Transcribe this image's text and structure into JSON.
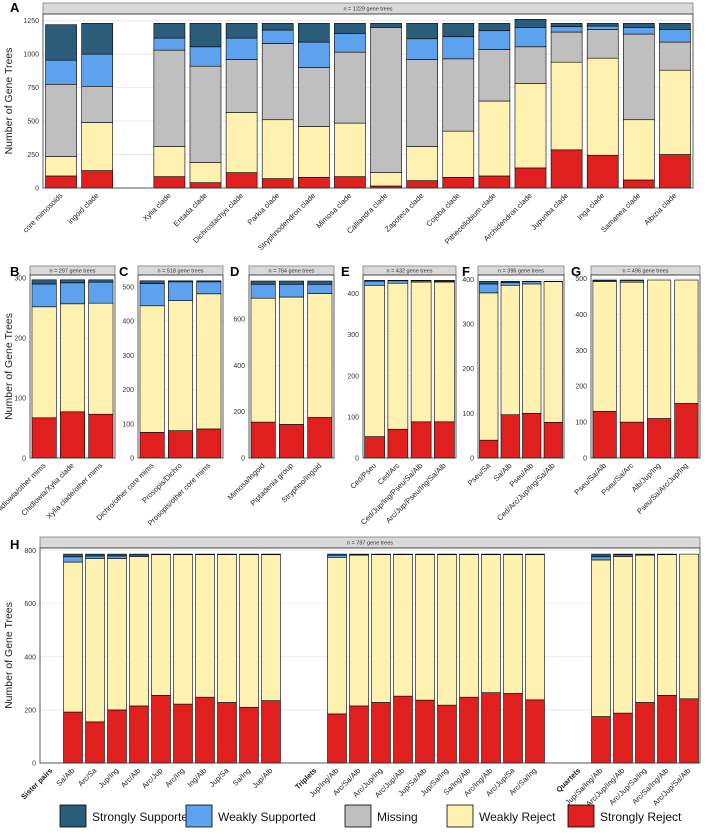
{
  "legend": {
    "categories": [
      "Strongly Supported",
      "Weakly Supported",
      "Missing",
      "Weakly Reject",
      "Strongly Reject"
    ],
    "colors": [
      "#2b5d7a",
      "#5da2ee",
      "#bfbfbf",
      "#fff1b0",
      "#e0201e"
    ]
  },
  "chart_data": [
    {
      "panel": "A",
      "type": "stacked-bar",
      "strip": "n = 1229 gene trees",
      "ylabel": "Number of Gene Trees",
      "ylim": [
        0,
        1300
      ],
      "yticks": [
        0,
        250,
        500,
        750,
        1000,
        1250
      ],
      "categories": [
        "core mimosoids",
        "ingoid clade",
        "",
        "Xylia clade",
        "Entada clade",
        "Dichrostachys clade",
        "Parkia clade",
        "Stryphnodendron clade",
        "Mimosa clade",
        "Calliandra clade",
        "Zapoteca clade",
        "Cojoba clade",
        "Pithecellobium clade",
        "Archidendron clade",
        "Jupunba clade",
        "Inga clade",
        "Samanea clade",
        "Albizia clade"
      ],
      "series": [
        {
          "name": "Strongly Reject",
          "values": [
            90,
            130,
            null,
            85,
            40,
            115,
            70,
            80,
            85,
            15,
            55,
            80,
            90,
            150,
            285,
            245,
            60,
            250
          ]
        },
        {
          "name": "Weakly Reject",
          "values": [
            145,
            360,
            null,
            225,
            150,
            450,
            440,
            380,
            400,
            100,
            255,
            345,
            560,
            630,
            655,
            725,
            450,
            630
          ]
        },
        {
          "name": "Missing",
          "values": [
            540,
            270,
            null,
            720,
            720,
            395,
            570,
            440,
            530,
            1085,
            650,
            540,
            385,
            275,
            225,
            215,
            640,
            210
          ]
        },
        {
          "name": "Weakly Supported",
          "values": [
            180,
            240,
            null,
            90,
            145,
            160,
            100,
            190,
            140,
            0,
            155,
            165,
            140,
            145,
            40,
            25,
            50,
            95
          ]
        },
        {
          "name": "Strongly Supported",
          "values": [
            265,
            230,
            null,
            110,
            175,
            110,
            50,
            140,
            75,
            30,
            115,
            100,
            55,
            60,
            25,
            20,
            30,
            45
          ]
        }
      ]
    },
    {
      "panel": "B",
      "type": "stacked-bar",
      "strip": "n = 297 gene trees",
      "ylabel": "Number of Gene Trees",
      "ylim": [
        0,
        305
      ],
      "yticks": [
        0,
        100,
        200,
        300
      ],
      "categories": [
        "Chidlowia/other mims",
        "Chidlowia/Xylia clade",
        "Xylia clade/other mims"
      ],
      "series": [
        {
          "name": "Strongly Reject",
          "values": [
            67,
            77,
            73
          ]
        },
        {
          "name": "Weakly Reject",
          "values": [
            185,
            180,
            185
          ]
        },
        {
          "name": "Missing",
          "values": [
            0,
            0,
            0
          ]
        },
        {
          "name": "Weakly Supported",
          "values": [
            38,
            35,
            35
          ]
        },
        {
          "name": "Strongly Supported",
          "values": [
            7,
            5,
            4
          ]
        }
      ]
    },
    {
      "panel": "C",
      "type": "stacked-bar",
      "strip": "n = 518 gene trees",
      "ylabel": "",
      "ylim": [
        0,
        535
      ],
      "yticks": [
        0,
        100,
        200,
        300,
        400,
        500
      ],
      "categories": [
        "Dichro/other core mims",
        "Prosopis/Dichro",
        "Prosopis/other core mims"
      ],
      "series": [
        {
          "name": "Strongly Reject",
          "values": [
            75,
            80,
            85
          ]
        },
        {
          "name": "Weakly Reject",
          "values": [
            370,
            380,
            395
          ]
        },
        {
          "name": "Missing",
          "values": [
            0,
            0,
            0
          ]
        },
        {
          "name": "Weakly Supported",
          "values": [
            65,
            55,
            35
          ]
        },
        {
          "name": "Strongly Supported",
          "values": [
            8,
            3,
            3
          ]
        }
      ]
    },
    {
      "panel": "D",
      "type": "stacked-bar",
      "strip": "n = 764 gene trees",
      "ylabel": "",
      "ylim": [
        0,
        790
      ],
      "yticks": [
        0,
        200,
        400,
        600
      ],
      "categories": [
        "Mimosa/Ingoid",
        "Piptadenia group",
        "Stryphno/Ingoid"
      ],
      "series": [
        {
          "name": "Strongly Reject",
          "values": [
            155,
            145,
            175
          ]
        },
        {
          "name": "Weakly Reject",
          "values": [
            535,
            550,
            535
          ]
        },
        {
          "name": "Missing",
          "values": [
            0,
            0,
            0
          ]
        },
        {
          "name": "Weakly Supported",
          "values": [
            60,
            55,
            40
          ]
        },
        {
          "name": "Strongly Supported",
          "values": [
            14,
            14,
            14
          ]
        }
      ]
    },
    {
      "panel": "E",
      "type": "stacked-bar",
      "strip": "n = 432 gene trees",
      "ylabel": "",
      "ylim": [
        0,
        445
      ],
      "yticks": [
        0,
        100,
        200,
        300,
        400
      ],
      "categories": [
        "Ced/Pseu",
        "Ced/Arc",
        "Ced/Jup/Ing/Pseu/Sa/Alb",
        "Arc/Jup/Pseu/Ing/Sa/Alb"
      ],
      "series": [
        {
          "name": "Strongly Reject",
          "values": [
            52,
            70,
            88,
            88
          ]
        },
        {
          "name": "Weakly Reject",
          "values": [
            368,
            355,
            340,
            340
          ]
        },
        {
          "name": "Missing",
          "values": [
            0,
            0,
            0,
            0
          ]
        },
        {
          "name": "Weakly Supported",
          "values": [
            10,
            6,
            3,
            2
          ]
        },
        {
          "name": "Strongly Supported",
          "values": [
            2,
            1,
            1,
            2
          ]
        }
      ]
    },
    {
      "panel": "F",
      "type": "stacked-bar",
      "strip": "n = 396 gene trees",
      "ylabel": "",
      "ylim": [
        0,
        410
      ],
      "yticks": [
        0,
        100,
        200,
        300,
        400
      ],
      "categories": [
        "Pseu/Sa",
        "Sa/Alb",
        "Pseu/Alb",
        "Ced/Arc/Jup/Ing/Sa/Alb"
      ],
      "series": [
        {
          "name": "Strongly Reject",
          "values": [
            40,
            97,
            100,
            80
          ]
        },
        {
          "name": "Weakly Reject",
          "values": [
            330,
            290,
            290,
            315
          ]
        },
        {
          "name": "Missing",
          "values": [
            0,
            0,
            0,
            0
          ]
        },
        {
          "name": "Weakly Supported",
          "values": [
            20,
            6,
            5,
            1
          ]
        },
        {
          "name": "Strongly Supported",
          "values": [
            6,
            3,
            1,
            0
          ]
        }
      ]
    },
    {
      "panel": "G",
      "type": "stacked-bar",
      "strip": "n = 496 gene trees",
      "ylabel": "",
      "ylim": [
        0,
        510
      ],
      "yticks": [
        0,
        100,
        200,
        300,
        400,
        500
      ],
      "categories": [
        "Pseu/Sa/Alb",
        "Pseu/Sa/Arc",
        "Alb/Jup/Ing",
        "Pseu/Sa/Arc/Jup/Ing"
      ],
      "series": [
        {
          "name": "Strongly Reject",
          "values": [
            130,
            100,
            110,
            152
          ]
        },
        {
          "name": "Weakly Reject",
          "values": [
            362,
            390,
            386,
            344
          ]
        },
        {
          "name": "Missing",
          "values": [
            0,
            0,
            0,
            0
          ]
        },
        {
          "name": "Weakly Supported",
          "values": [
            3,
            5,
            0,
            0
          ]
        },
        {
          "name": "Strongly Supported",
          "values": [
            1,
            1,
            0,
            0
          ]
        }
      ]
    },
    {
      "panel": "H",
      "type": "stacked-bar",
      "strip": "n = 787 gene trees",
      "ylabel": "Number of Gene Trees",
      "ylim": [
        0,
        810
      ],
      "yticks": [
        0,
        200,
        400,
        600,
        800
      ],
      "group_headers": [
        "Sister pairs",
        "Triplets",
        "Quartets"
      ],
      "categories": [
        "Sister pairs",
        "Sa/Alb",
        "Arc/Sa",
        "Jup/Ing",
        "Arc/Alb",
        "Arc/Jup",
        "Arc/Ing",
        "Ing/Alb",
        "Jup/Sa",
        "Sa/Ing",
        "Jup/Alb",
        "",
        "Triplets",
        "Jup/Ing/Alb",
        "Arc/Sa/Alb",
        "Arc/Jup/Ing",
        "Arc/Jup/Alb",
        "Jup/Sa/Alb",
        "Jup/Sa/Ing",
        "Sa/Ing/Alb",
        "Arc/Ing/Alb",
        "Arc/Jup/Sa",
        "Arc/Sa/Ing",
        "",
        "Quartets",
        "Jup/Sa/Ing/Alb",
        "Arc/Jup/Ing/Alb",
        "Arc/Jup/Sa/Ing",
        "Arc/Sa/Ing/Alb",
        "Arc/Jup/Sa/Alb"
      ],
      "series": [
        {
          "name": "Strongly Reject",
          "values": [
            null,
            192,
            155,
            200,
            215,
            255,
            222,
            248,
            228,
            210,
            235,
            null,
            null,
            185,
            215,
            228,
            252,
            237,
            218,
            248,
            265,
            262,
            238,
            null,
            null,
            175,
            188,
            228,
            255,
            242
          ]
        },
        {
          "name": "Weakly Reject",
          "values": [
            null,
            565,
            615,
            570,
            563,
            530,
            563,
            537,
            557,
            575,
            550,
            null,
            null,
            590,
            568,
            557,
            533,
            548,
            567,
            537,
            520,
            523,
            547,
            null,
            null,
            590,
            590,
            555,
            530,
            545
          ]
        },
        {
          "name": "Missing",
          "values": [
            null,
            0,
            0,
            0,
            0,
            0,
            0,
            0,
            0,
            0,
            0,
            null,
            null,
            0,
            0,
            0,
            0,
            0,
            0,
            0,
            0,
            0,
            0,
            null,
            null,
            0,
            0,
            0,
            0,
            0
          ]
        },
        {
          "name": "Weakly Supported",
          "values": [
            null,
            20,
            10,
            10,
            5,
            0,
            0,
            0,
            0,
            0,
            0,
            null,
            null,
            8,
            3,
            0,
            0,
            0,
            0,
            0,
            0,
            0,
            0,
            null,
            null,
            12,
            6,
            3,
            0,
            0
          ]
        },
        {
          "name": "Strongly Supported",
          "values": [
            null,
            10,
            7,
            7,
            4,
            2,
            2,
            2,
            2,
            2,
            2,
            null,
            null,
            4,
            1,
            2,
            2,
            2,
            2,
            2,
            2,
            2,
            2,
            null,
            null,
            10,
            3,
            1,
            2,
            0
          ]
        }
      ]
    }
  ]
}
